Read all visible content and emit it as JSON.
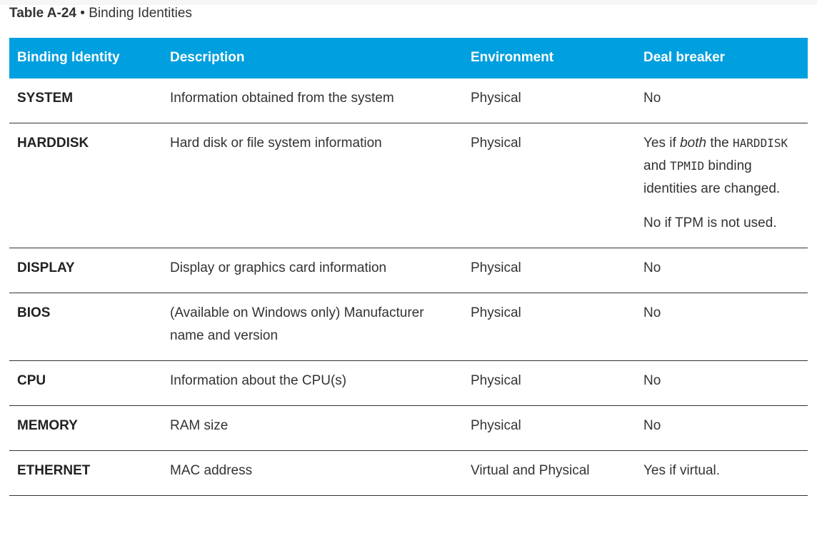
{
  "caption": {
    "label": "Table A-24",
    "separator": "•",
    "title": "Binding Identities"
  },
  "table": {
    "headers": [
      "Binding Identity",
      "Description",
      "Environment",
      "Deal breaker"
    ],
    "rows": [
      [
        "SYSTEM",
        "Information obtained from the system",
        "Physical",
        "No"
      ],
      [
        "HARDDISK",
        "Hard disk or file system information",
        "Physical",
        {
          "paragraphs": [
            [
              "Yes if ",
              {
                "text": "both",
                "style": "italic"
              },
              " the ",
              {
                "text": "HARDDISK",
                "style": "code"
              },
              " and ",
              {
                "text": "TPMID",
                "style": "code"
              },
              " binding identities are changed."
            ],
            [
              "No if TPM is not used."
            ]
          ]
        }
      ],
      [
        "DISPLAY",
        "Display or graphics card information",
        "Physical",
        "No"
      ],
      [
        "BIOS",
        "(Available on Windows only) Manufacturer name and version",
        "Physical",
        "No"
      ],
      [
        "CPU",
        "Information about the CPU(s)",
        "Physical",
        "No"
      ],
      [
        "MEMORY",
        "RAM size",
        "Physical",
        "No"
      ],
      [
        "ETHERNET",
        "MAC address",
        "Virtual and Physical",
        "Yes if virtual."
      ]
    ]
  }
}
